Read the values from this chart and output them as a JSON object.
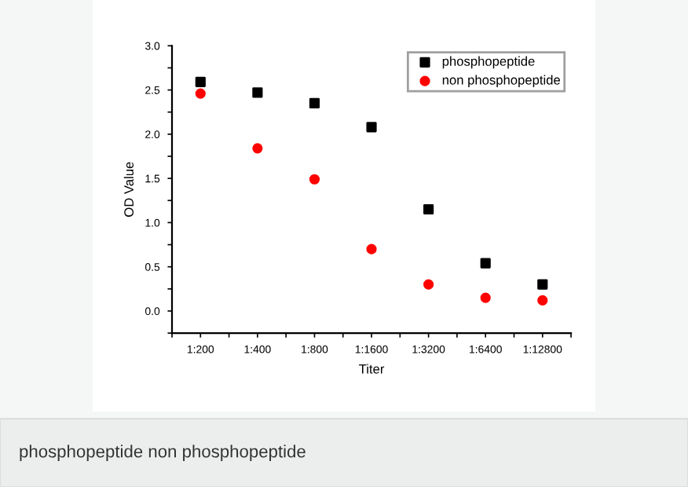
{
  "chart_data": {
    "type": "scatter",
    "xlabel": "Titer",
    "ylabel": "OD Value",
    "categories": [
      "1:200",
      "1:400",
      "1:800",
      "1:1600",
      "1:3200",
      "1:6400",
      "1:12800"
    ],
    "series": [
      {
        "name": "phosphopeptide",
        "color": "#000000",
        "marker": "square",
        "values": [
          2.59,
          2.47,
          2.35,
          2.08,
          1.15,
          0.54,
          0.3
        ]
      },
      {
        "name": "non phosphopeptide",
        "color": "#ff0000",
        "marker": "circle",
        "values": [
          2.46,
          1.84,
          1.49,
          0.7,
          0.3,
          0.15,
          0.12
        ]
      }
    ],
    "ylim": [
      -0.25,
      3.0
    ],
    "yticks": [
      {
        "value": 0,
        "label": "0.0"
      },
      0.5,
      {
        "value": 1,
        "label": "1.0"
      },
      1.5,
      {
        "value": 2,
        "label": "2.0"
      },
      2.5,
      {
        "value": 3,
        "label": "3.0"
      }
    ],
    "grid": false,
    "legend": "top right",
    "annotations": [
      "phosphopeptide non phosphopeptide"
    ]
  }
}
